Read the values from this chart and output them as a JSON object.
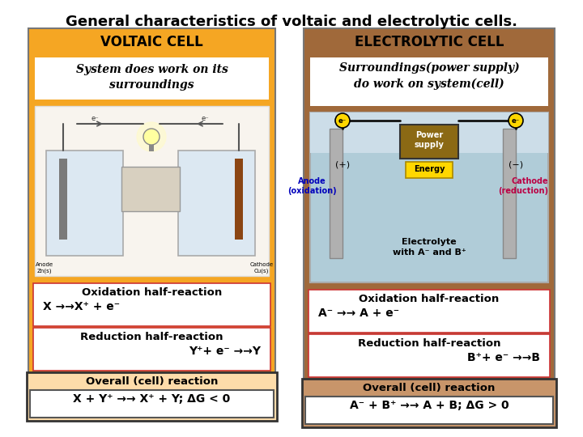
{
  "title": "General characteristics of voltaic and electrolytic cells.",
  "title_fontsize": 13,
  "bg_color": "#ffffff",
  "voltaic": {
    "box_color": "#F5A623",
    "header": "VOLTAIC CELL",
    "header_color": "#000000",
    "subtitle": "System does work on its\nsurroundings",
    "ox_header": "Oxidation half-reaction",
    "ox_reaction": "X →→X⁺ + e⁻",
    "red_header": "Reduction half-reaction",
    "red_reaction": "Y⁺+ e⁻ →→Y",
    "overall_header": "Overall (cell) reaction",
    "overall_reaction": "X + Y⁺ →→ X⁺ + Y; ΔG < 0",
    "overall_bg": "#FDDCAA"
  },
  "electrolytic": {
    "box_color": "#A0693A",
    "header": "ELECTROLYTIC CELL",
    "header_color": "#000000",
    "subtitle": "Surroundings(power supply)\ndo work on system(cell)",
    "ox_header": "Oxidation half-reaction",
    "ox_reaction": "A⁻ →→ A + e⁻",
    "red_header": "Reduction half-reaction",
    "red_reaction": "B⁺+ e⁻ →→B",
    "overall_header": "Overall (cell) reaction",
    "overall_reaction": "A⁻ + B⁺ →→ A + B; ΔG > 0",
    "overall_bg": "#C8956A"
  }
}
